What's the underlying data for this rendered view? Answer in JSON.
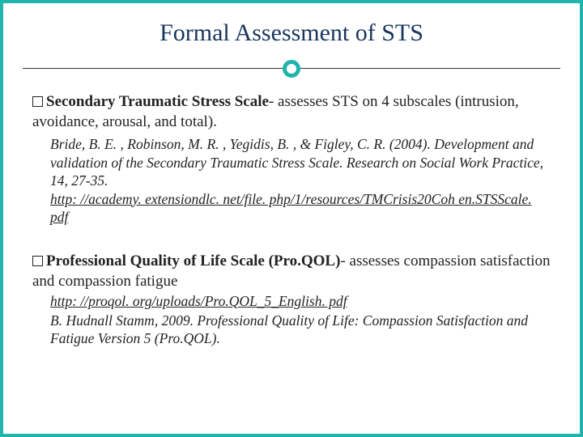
{
  "colors": {
    "border": "#1fb5ad",
    "title": "#17365d",
    "text": "#222222",
    "background": "#ffffff"
  },
  "title": "Formal Assessment of STS",
  "section1": {
    "heading_bold": "Secondary Traumatic Stress Scale",
    "heading_rest": "- assesses STS on 4 subscales (intrusion, avoidance, arousal, and total).",
    "citation": "Bride, B. E. , Robinson, M. R. , Yegidis, B. , & Figley, C. R. (2004). Development and validation of the Secondary Traumatic Stress Scale. Research on Social Work Practice, 14, 27-35.",
    "link": "http: //academy. extensiondlc. net/file. php/1/resources/TMCrisis20Coh en.STSScale. pdf"
  },
  "section2": {
    "heading_bold": "Professional Quality of Life Scale (Pro.QOL)",
    "heading_rest": "- assesses compassion satisfaction and compassion fatigue",
    "link": "http: //proqol. org/uploads/Pro.QOL_5_English. pdf",
    "citation": "B. Hudnall Stamm, 2009. Professional Quality of Life: Compassion Satisfaction and Fatigue Version 5 (Pro.QOL)."
  }
}
